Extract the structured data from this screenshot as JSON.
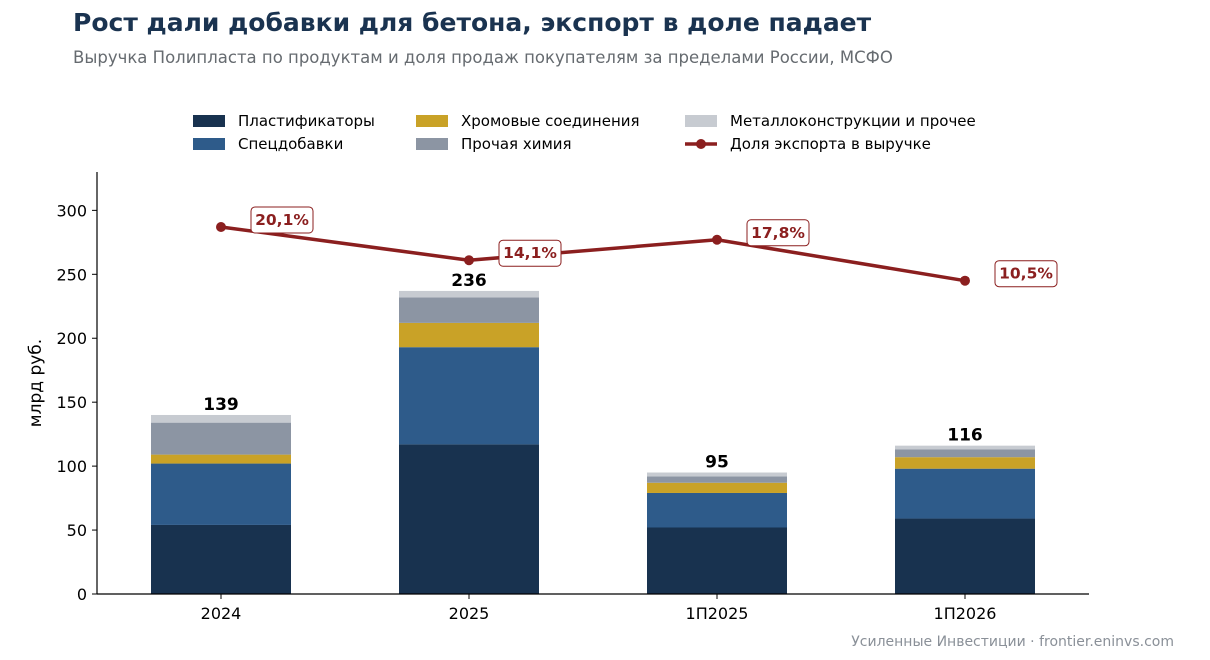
{
  "header": {
    "title": "Рост дали добавки для бетона, экспорт в доле падает",
    "subtitle": "Выручка Полипласта по продуктам и доля продаж покупателям за пределами России, МСФО"
  },
  "footer": {
    "credit": "Усиленные Инвестиции · frontier.eninvs.com"
  },
  "chart_data": {
    "type": "bar",
    "stacked": true,
    "categories": [
      "2024",
      "2025",
      "1П2025",
      "1П2026"
    ],
    "ylabel": "млрд руб.",
    "ylim": [
      0,
      330
    ],
    "yticks": [
      0,
      50,
      100,
      150,
      200,
      250,
      300
    ],
    "grid": false,
    "legend_position": "top",
    "series": [
      {
        "name": "Пластификаторы",
        "color": "#18324f",
        "values": [
          54,
          117,
          52,
          59
        ]
      },
      {
        "name": "Спецдобавки",
        "color": "#2e5b8a",
        "values": [
          48,
          76,
          27,
          39
        ]
      },
      {
        "name": "Хромовые соединения",
        "color": "#c9a227",
        "values": [
          7,
          19,
          8,
          9
        ]
      },
      {
        "name": "Прочая химия",
        "color": "#8c95a3",
        "values": [
          25,
          20,
          5,
          6
        ]
      },
      {
        "name": "Металлоконструкции и прочее",
        "color": "#c7cbd1",
        "values": [
          6,
          5,
          3,
          3
        ]
      }
    ],
    "totals": [
      139,
      236,
      95,
      116
    ],
    "total_labels": [
      "139",
      "236",
      "95",
      "116"
    ],
    "line_series": {
      "name": "Доля экспорта в выручке",
      "color": "#8b1f1f",
      "values": [
        20.1,
        14.1,
        17.8,
        10.5
      ],
      "labels": [
        "20,1%",
        "14,1%",
        "17,8%",
        "10,5%"
      ],
      "plotted_y": [
        287,
        261,
        277,
        245
      ]
    }
  }
}
